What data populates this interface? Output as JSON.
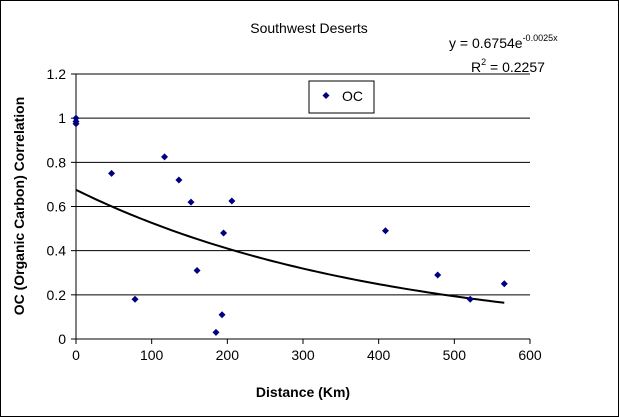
{
  "chart_data": {
    "type": "scatter",
    "title": "Southwest Deserts",
    "xlabel": "Distance (Km)",
    "ylabel": "OC (Organic Carbon) Correlation",
    "xlim": [
      0,
      600
    ],
    "ylim": [
      0,
      1.2
    ],
    "xticks": [
      "0",
      "100",
      "200",
      "300",
      "400",
      "500",
      "600"
    ],
    "yticks": [
      "0",
      "0.2",
      "0.4",
      "0.6",
      "0.8",
      "1",
      "1.2"
    ],
    "grid": "horizontal",
    "legend_position": "top-center",
    "series": [
      {
        "name": "OC",
        "color": "#000080",
        "marker": "diamond",
        "x": [
          0,
          0,
          0,
          47,
          78,
          117,
          136,
          152,
          160,
          185,
          193,
          195,
          206,
          409,
          478,
          521,
          566
        ],
        "y": [
          1.0,
          0.985,
          0.975,
          0.75,
          0.18,
          0.825,
          0.72,
          0.62,
          0.31,
          0.03,
          0.11,
          0.48,
          0.625,
          0.49,
          0.29,
          0.18,
          0.25
        ]
      }
    ],
    "trendline": {
      "type": "exponential",
      "a": 0.6754,
      "b": -0.0025,
      "x_range": [
        0,
        566
      ],
      "color": "#000000",
      "equation_text": {
        "prefix": "y = 0.6754e",
        "exponent": "-0.0025x"
      },
      "r2_text": {
        "prefix": "R",
        "power": "2",
        "suffix": " = 0.2257"
      }
    }
  }
}
